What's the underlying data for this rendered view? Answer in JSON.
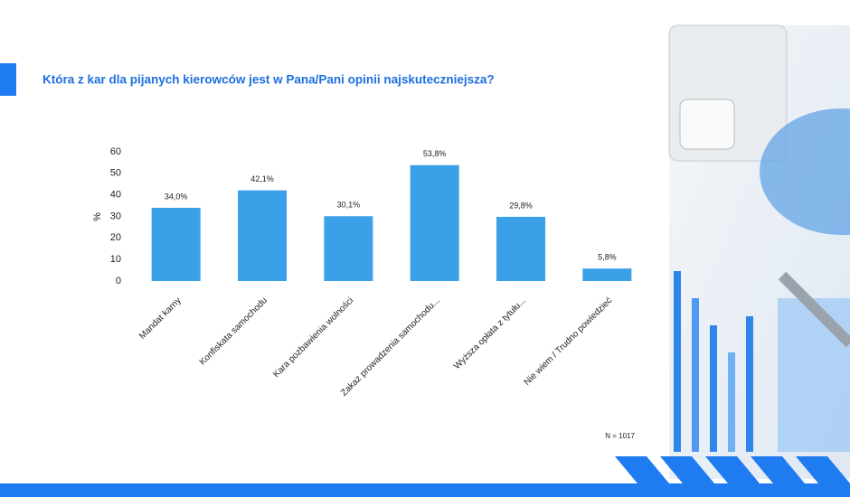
{
  "chart_data": {
    "type": "bar",
    "title": "Która z kar dla pijanych kierowców jest w Pana/Pani opinii najskuteczniejsza?",
    "ylabel": "%",
    "categories": [
      "Mandat karny",
      "Konfiskata samochodu",
      "Kara pozbawienia wolności",
      "Zakaz prowadzenia samochodu...",
      "Wyższa opłata z tytułu...",
      "Nie wiem / Trudno powiedzieć"
    ],
    "values": [
      34.0,
      42.1,
      30.1,
      53.8,
      29.8,
      5.8
    ],
    "value_labels": [
      "34,0%",
      "42,1%",
      "30,1%",
      "53,8%",
      "29,8%",
      "5,8%"
    ],
    "color": "#3aa0e8",
    "ylim": [
      0,
      60
    ],
    "yticks": [
      0,
      10,
      20,
      30,
      40,
      50,
      60
    ],
    "annotation": "N = 1017"
  }
}
